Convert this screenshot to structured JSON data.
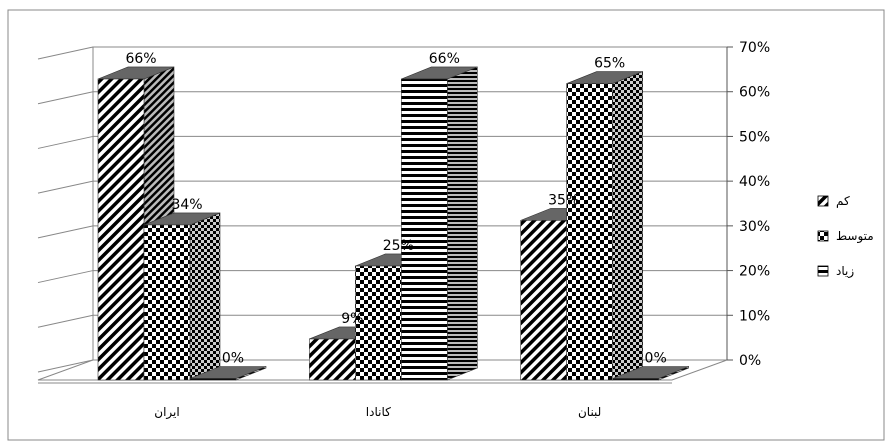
{
  "chart_data": {
    "type": "bar",
    "categories": [
      "ایران",
      "کانادا",
      "لبنان"
    ],
    "series": [
      {
        "name": "کم",
        "values": [
          66,
          9,
          35
        ],
        "pattern": "diagonal"
      },
      {
        "name": "متوسط",
        "values": [
          34,
          25,
          65
        ],
        "pattern": "checker"
      },
      {
        "name": "زیاد",
        "values": [
          0,
          66,
          0
        ],
        "pattern": "horizontal"
      }
    ],
    "value_labels": [
      [
        "66%",
        "34%",
        "0%"
      ],
      [
        "9%",
        "25%",
        "66%"
      ],
      [
        "35%",
        "65%",
        "0%"
      ]
    ],
    "yticks": [
      "0%",
      "10%",
      "20%",
      "30%",
      "40%",
      "50%",
      "60%",
      "70%"
    ],
    "ylim": [
      0,
      70
    ],
    "grid": true,
    "legend_position": "right",
    "style": "3d-clustered-column"
  }
}
